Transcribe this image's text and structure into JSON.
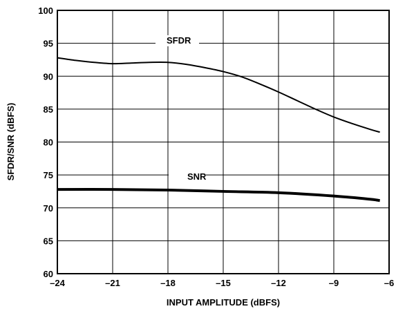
{
  "chart_data": {
    "type": "line",
    "title": "",
    "xlabel": "INPUT AMPLITUDE (dBFS)",
    "ylabel": "SFDR/SNR (dBFS)",
    "xlim": [
      -24,
      -6
    ],
    "ylim": [
      60,
      100
    ],
    "x_ticks": [
      -24,
      -21,
      -18,
      -15,
      -12,
      -9,
      -6
    ],
    "x_tick_labels": [
      "–24",
      "–21",
      "–18",
      "–15",
      "–12",
      "–9",
      "–6"
    ],
    "y_ticks": [
      60,
      65,
      70,
      75,
      80,
      85,
      90,
      95,
      100
    ],
    "y_tick_labels": [
      "60",
      "65",
      "70",
      "75",
      "80",
      "85",
      "90",
      "95",
      "100"
    ],
    "grid": true,
    "series": [
      {
        "name": "SFDR",
        "x": [
          -24,
          -23,
          -22,
          -21,
          -20,
          -19,
          -18,
          -17,
          -16,
          -15,
          -14,
          -13,
          -12,
          -11,
          -10,
          -9,
          -8,
          -7,
          -6.5
        ],
        "y": [
          92.8,
          92.4,
          92.1,
          91.9,
          92.0,
          92.1,
          92.1,
          91.8,
          91.3,
          90.7,
          89.9,
          88.8,
          87.6,
          86.3,
          85.0,
          83.8,
          82.8,
          81.9,
          81.5
        ]
      },
      {
        "name": "SNR",
        "x": [
          -24,
          -21,
          -18,
          -15,
          -12,
          -9,
          -7,
          -6.5
        ],
        "y": [
          72.8,
          72.8,
          72.7,
          72.5,
          72.3,
          71.8,
          71.3,
          71.1
        ]
      }
    ]
  }
}
